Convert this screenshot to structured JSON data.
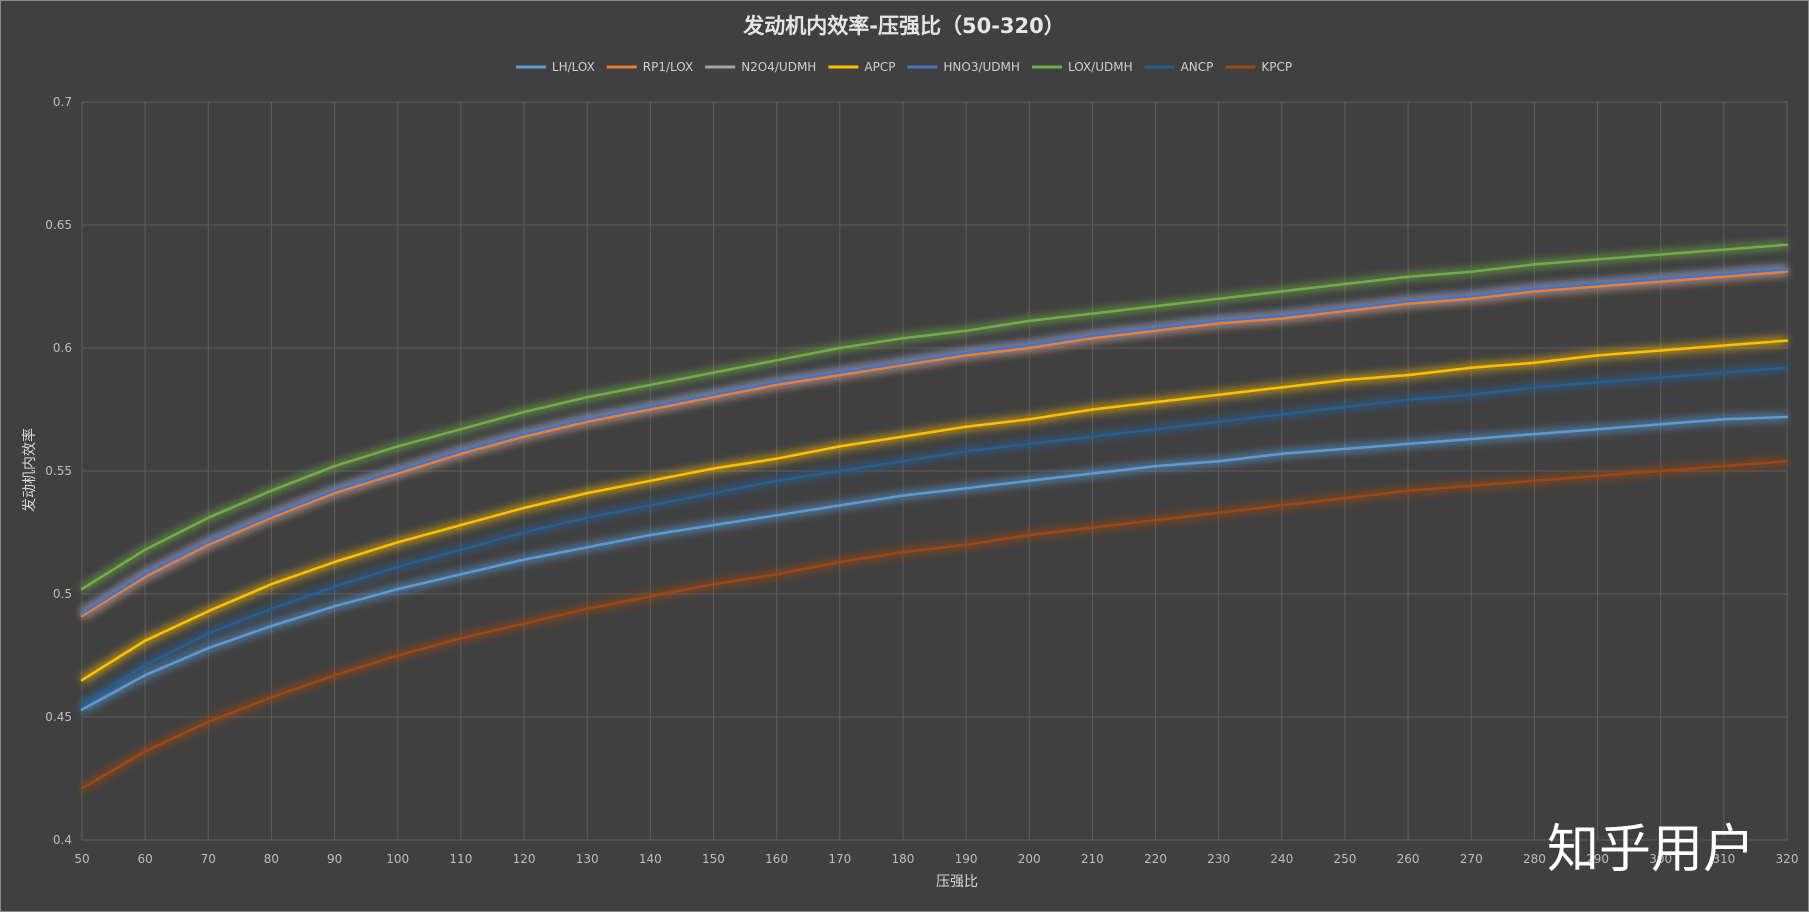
{
  "chart_data": {
    "type": "line",
    "title": "发动机内效率-压强比（50-320）",
    "xlabel": "压强比",
    "ylabel": "发动机内效率",
    "xlim": [
      50,
      320
    ],
    "ylim": [
      0.4,
      0.7
    ],
    "x": [
      50,
      60,
      70,
      80,
      90,
      100,
      110,
      120,
      130,
      140,
      150,
      160,
      170,
      180,
      190,
      200,
      210,
      220,
      230,
      240,
      250,
      260,
      270,
      280,
      290,
      300,
      310,
      320
    ],
    "x_tick_labels": [
      "50",
      "60",
      "70",
      "80",
      "90",
      "100",
      "110",
      "120",
      "130",
      "140",
      "150",
      "160",
      "170",
      "180",
      "190",
      "200",
      "210",
      "220",
      "230",
      "240",
      "250",
      "260",
      "270",
      "280",
      "290",
      "300",
      "310",
      "320"
    ],
    "y_tick_labels": [
      "0.4",
      "0.45",
      "0.5",
      "0.55",
      "0.6",
      "0.65",
      "0.7"
    ],
    "grid": true,
    "legend_position": "top",
    "series": [
      {
        "name": "LH/LOX",
        "color": "#5b9bd5",
        "values": [
          0.453,
          0.467,
          0.478,
          0.487,
          0.495,
          0.502,
          0.508,
          0.514,
          0.519,
          0.524,
          0.528,
          0.532,
          0.536,
          0.54,
          0.543,
          0.546,
          0.549,
          0.552,
          0.554,
          0.557,
          0.559,
          0.561,
          0.563,
          0.565,
          0.567,
          0.569,
          0.571,
          0.572
        ]
      },
      {
        "name": "RP1/LOX",
        "color": "#ed7d31",
        "values": [
          0.491,
          0.507,
          0.52,
          0.531,
          0.541,
          0.549,
          0.557,
          0.564,
          0.57,
          0.575,
          0.58,
          0.585,
          0.589,
          0.593,
          0.597,
          0.6,
          0.604,
          0.607,
          0.61,
          0.612,
          0.615,
          0.618,
          0.62,
          0.623,
          0.625,
          0.627,
          0.629,
          0.631
        ]
      },
      {
        "name": "N2O4/UDMH",
        "color": "#a5a5a5",
        "values": [
          0.492,
          0.508,
          0.521,
          0.532,
          0.542,
          0.55,
          0.558,
          0.565,
          0.571,
          0.576,
          0.581,
          0.586,
          0.59,
          0.594,
          0.598,
          0.601,
          0.605,
          0.608,
          0.611,
          0.613,
          0.616,
          0.619,
          0.621,
          0.624,
          0.626,
          0.628,
          0.63,
          0.632
        ]
      },
      {
        "name": "APCP",
        "color": "#ffc000",
        "values": [
          0.465,
          0.481,
          0.493,
          0.504,
          0.513,
          0.521,
          0.528,
          0.535,
          0.541,
          0.546,
          0.551,
          0.555,
          0.56,
          0.564,
          0.568,
          0.571,
          0.575,
          0.578,
          0.581,
          0.584,
          0.587,
          0.589,
          0.592,
          0.594,
          0.597,
          0.599,
          0.601,
          0.603
        ]
      },
      {
        "name": "HNO3/UDMH",
        "color": "#4472c4",
        "values": [
          0.492,
          0.508,
          0.521,
          0.532,
          0.542,
          0.55,
          0.558,
          0.565,
          0.571,
          0.576,
          0.581,
          0.586,
          0.59,
          0.594,
          0.598,
          0.601,
          0.605,
          0.608,
          0.611,
          0.613,
          0.616,
          0.619,
          0.621,
          0.624,
          0.626,
          0.628,
          0.63,
          0.632
        ]
      },
      {
        "name": "LOX/UDMH",
        "color": "#70ad47",
        "values": [
          0.502,
          0.518,
          0.531,
          0.542,
          0.552,
          0.56,
          0.567,
          0.574,
          0.58,
          0.585,
          0.59,
          0.595,
          0.6,
          0.604,
          0.607,
          0.611,
          0.614,
          0.617,
          0.62,
          0.623,
          0.626,
          0.629,
          0.631,
          0.634,
          0.636,
          0.638,
          0.64,
          0.642
        ]
      },
      {
        "name": "ANCP",
        "color": "#255e91",
        "values": [
          0.455,
          0.471,
          0.484,
          0.494,
          0.503,
          0.511,
          0.518,
          0.525,
          0.531,
          0.536,
          0.541,
          0.546,
          0.55,
          0.554,
          0.558,
          0.561,
          0.564,
          0.567,
          0.57,
          0.573,
          0.576,
          0.579,
          0.581,
          0.584,
          0.586,
          0.588,
          0.59,
          0.592
        ]
      },
      {
        "name": "KPCP",
        "color": "#9e480e",
        "values": [
          0.421,
          0.436,
          0.448,
          0.458,
          0.467,
          0.475,
          0.482,
          0.488,
          0.494,
          0.499,
          0.504,
          0.508,
          0.513,
          0.517,
          0.52,
          0.524,
          0.527,
          0.53,
          0.533,
          0.536,
          0.539,
          0.542,
          0.544,
          0.546,
          0.548,
          0.55,
          0.552,
          0.554
        ]
      }
    ]
  },
  "watermark": "知乎用户"
}
